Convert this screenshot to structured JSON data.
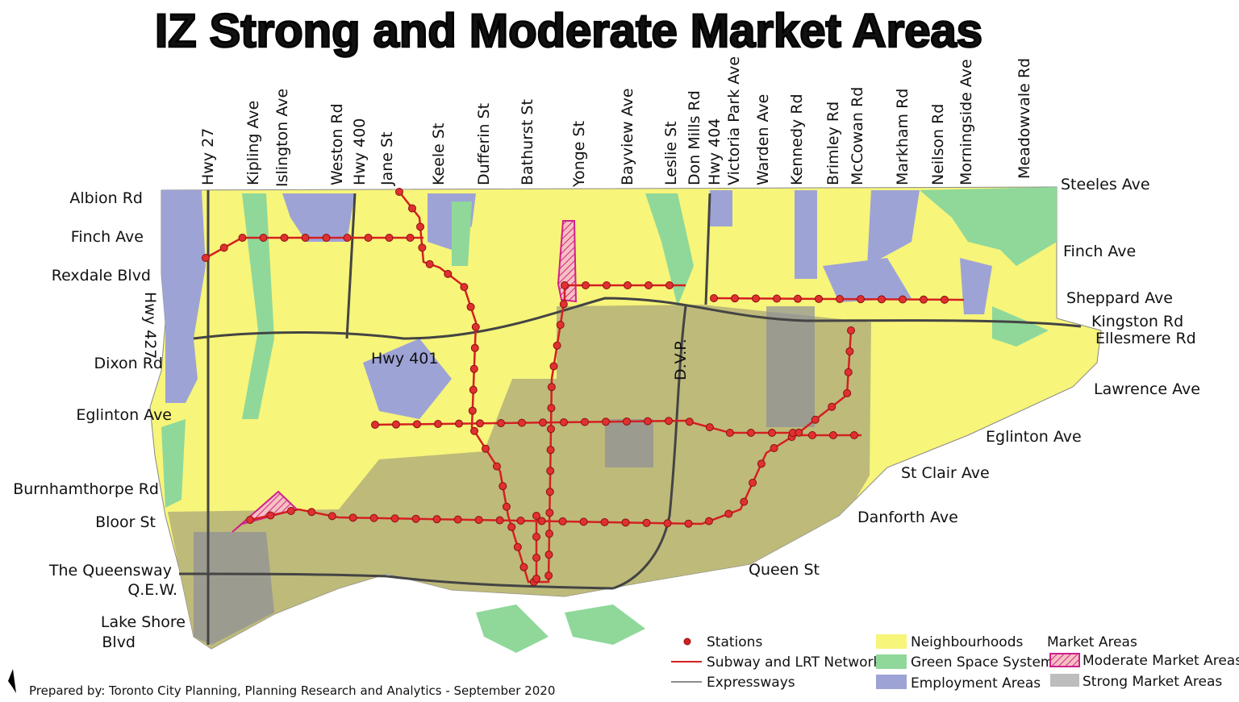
{
  "title": "IZ Strong and Moderate Market Areas",
  "top_streets": [
    "Hwy 27",
    "Kipling Ave",
    "Islington Ave",
    "Weston Rd",
    "Hwy 400",
    "Jane St",
    "Keele St",
    "Dufferin St",
    "Bathurst St",
    "Yonge St",
    "Bayview Ave",
    "Leslie St",
    "Don Mills Rd",
    "Hwy 404",
    "Victoria Park Ave",
    "Warden Ave",
    "Kennedy Rd",
    "Brimley Rd",
    "McCowan Rd",
    "Markham Rd",
    "Neilson Rd",
    "Morningside Ave",
    "Meadowvale Rd"
  ],
  "left_streets": [
    "Albion Rd",
    "Finch Ave",
    "Rexdale Blvd",
    "Dixon Rd",
    "Eglinton Ave",
    "Burnhamthorpe Rd",
    "Bloor St",
    "The Queensway",
    "Q.E.W.",
    "Lake Shore",
    "Blvd"
  ],
  "right_streets": [
    "Steeles Ave",
    "Finch Ave",
    "Sheppard Ave",
    "Kingston Rd",
    "Ellesmere Rd",
    "Lawrence Ave",
    "Eglinton Ave",
    "St Clair Ave",
    "Danforth Ave",
    "Queen St"
  ],
  "inner_labels": {
    "hwy_427": "Hwy 427",
    "hwy_401": "Hwy 401",
    "dvp": "D.V.P."
  },
  "legend": {
    "stations": "Stations",
    "subway": "Subway and LRT Network",
    "expressways": "Expressways",
    "neighbourhoods": "Neighbourhoods",
    "green_space": "Green Space System",
    "employment": "Employment Areas",
    "market_areas": "Market Areas",
    "moderate": "Moderate Market Areas",
    "strong": "Strong Market Areas"
  },
  "credit": "Prepared by: Toronto City Planning, Planning Research and Analytics - September 2020"
}
